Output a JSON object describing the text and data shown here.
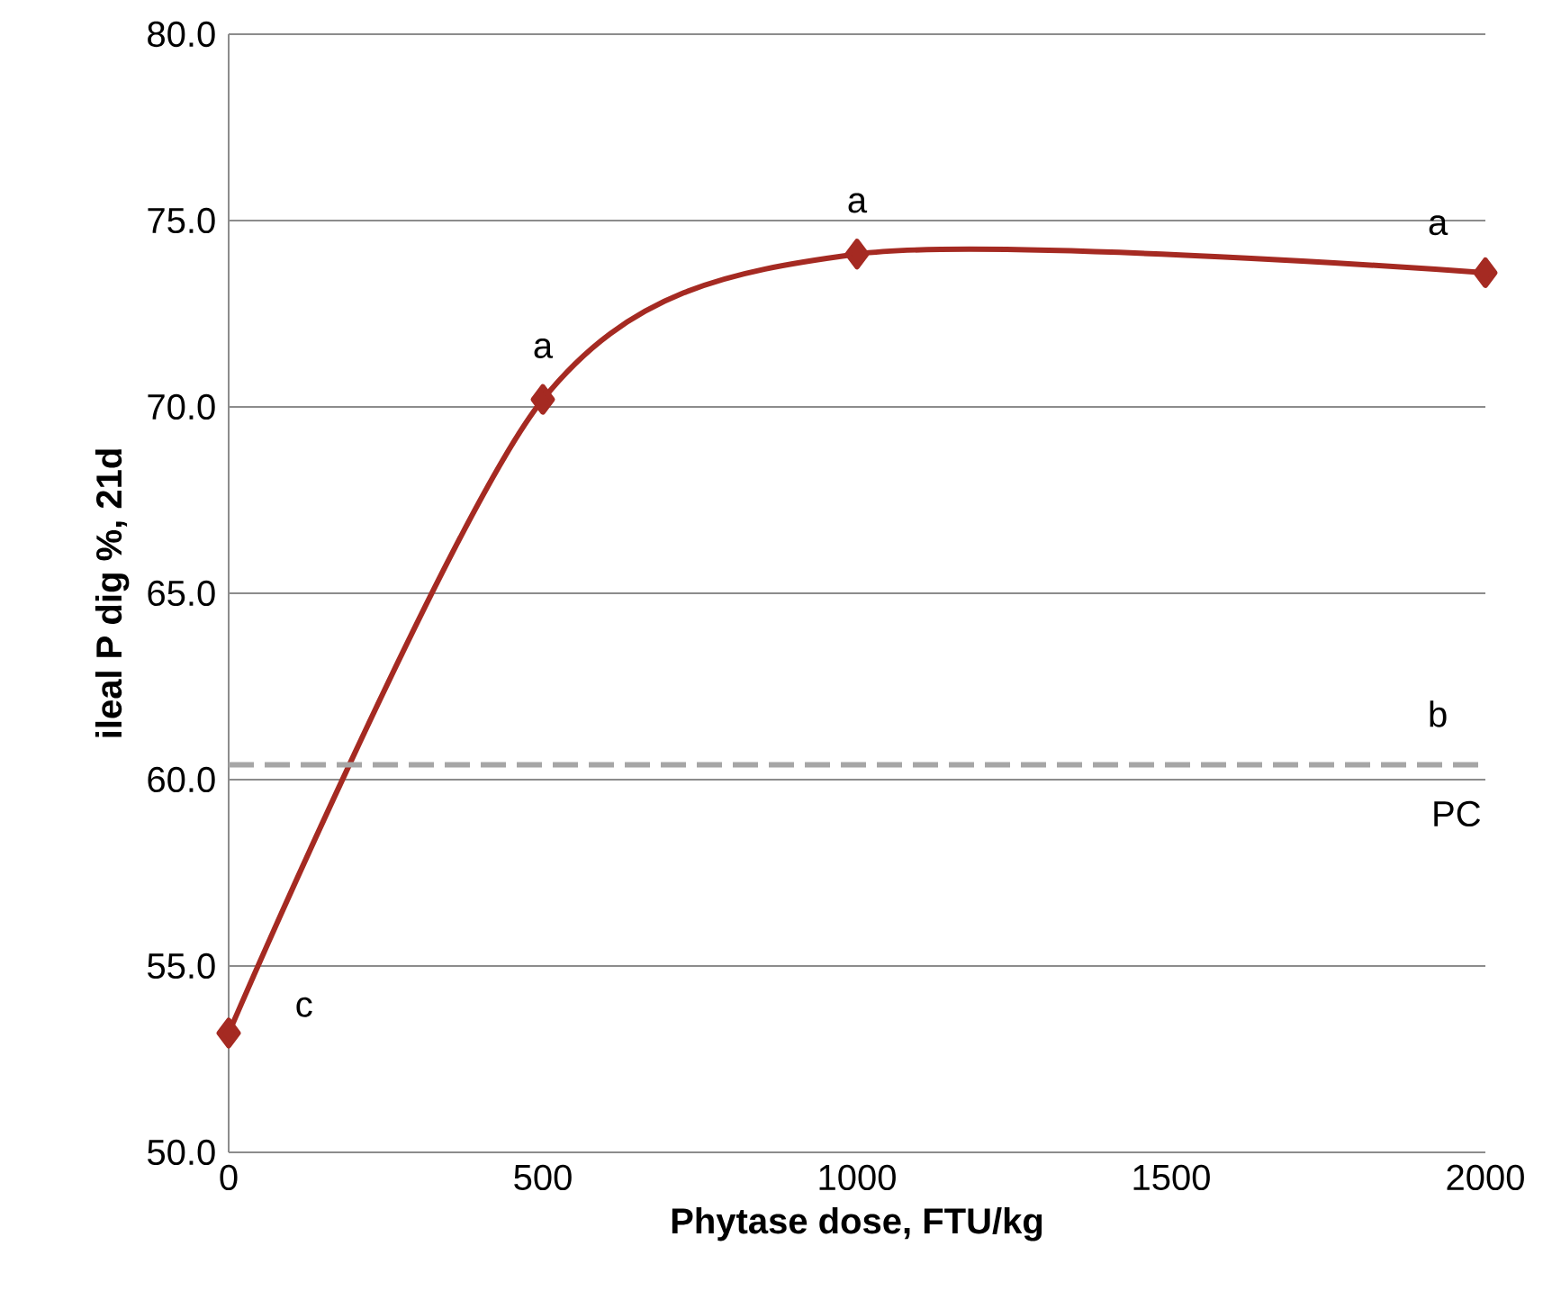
{
  "chart_data": {
    "type": "line",
    "xlabel": "Phytase dose, FTU/kg",
    "ylabel": "ileal P dig %, 21d",
    "x": [
      0,
      500,
      1000,
      2000
    ],
    "series": [
      {
        "color": "#a52a22",
        "values": [
          53.2,
          70.2,
          74.1,
          73.6
        ]
      }
    ],
    "marker": "diamond",
    "line_style": "solid",
    "grid": "y",
    "xlim": [
      0,
      2000
    ],
    "xticks": [
      0,
      500,
      1000,
      1500,
      2000
    ],
    "ylim": [
      50,
      80
    ],
    "yticks": [
      {
        "value": 50,
        "label": "50.0"
      },
      {
        "value": 55,
        "label": "55.0"
      },
      {
        "value": 60,
        "label": "60.0"
      },
      {
        "value": 65,
        "label": "65.0"
      },
      {
        "value": 70,
        "label": "70.0"
      },
      {
        "value": 75,
        "label": "75.0"
      },
      {
        "value": 80,
        "label": "80.0"
      }
    ],
    "ref_lines": [
      {
        "axis": "y",
        "value": 60.4,
        "label": "PC",
        "color": "#a6a6a6",
        "line_style": "dashed"
      }
    ],
    "annotations": [
      {
        "text": "c",
        "x": 0,
        "y": 53.2
      },
      {
        "text": "a",
        "x": 500,
        "y": 70.2
      },
      {
        "text": "a",
        "x": 1000,
        "y": 74.1
      },
      {
        "text": "a",
        "x": 2000,
        "y": 73.6
      },
      {
        "text": "b",
        "x": 2000,
        "y": 60.4
      }
    ]
  }
}
